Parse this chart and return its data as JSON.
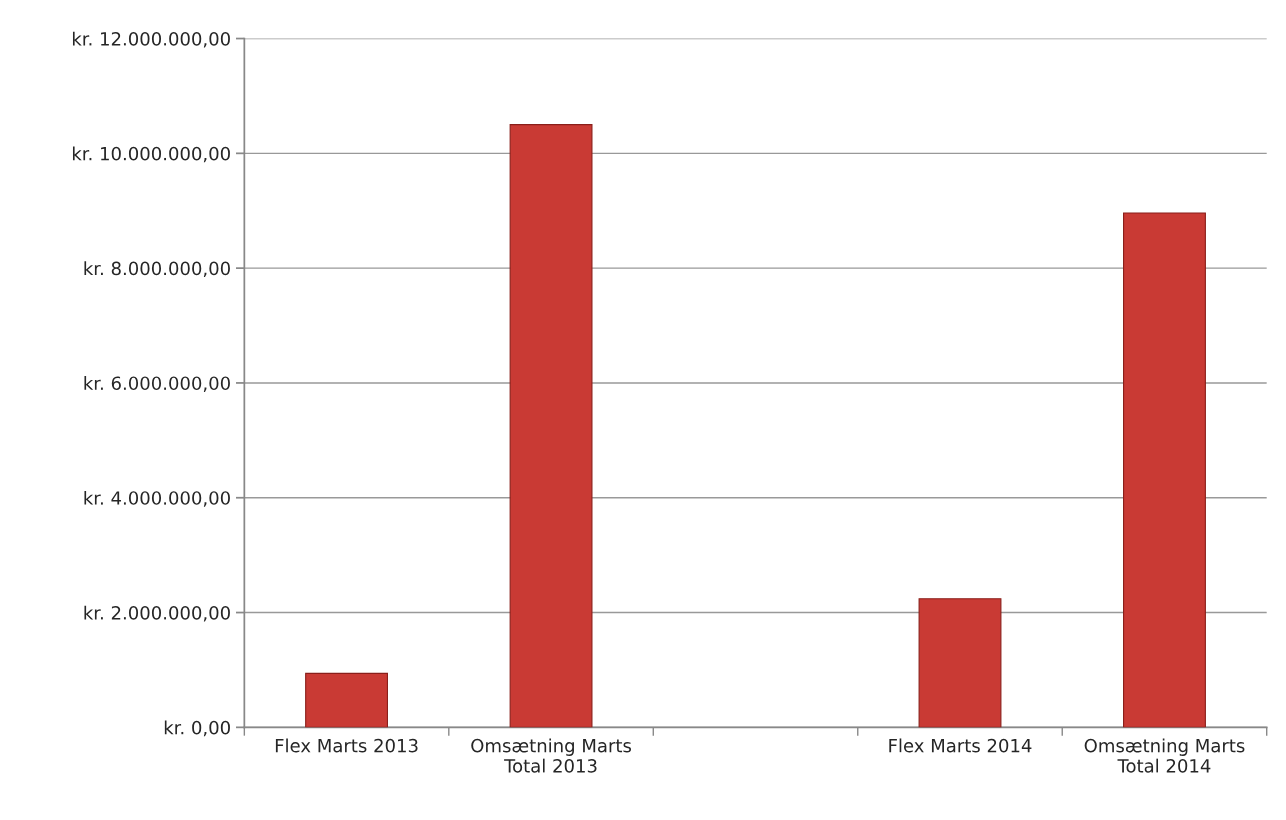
{
  "chart_data": {
    "type": "bar",
    "categories": [
      "Flex Marts 2013",
      "Omsætning Marts\nTotal 2013",
      null,
      "Flex Marts 2014",
      "Omsætning Marts\nTotal 2014"
    ],
    "values": [
      940000,
      10500000,
      null,
      2240000,
      8960000
    ],
    "color": "#c93a34",
    "ylim": [
      0,
      12000000
    ],
    "yticks": [
      {
        "value": 0,
        "label": "kr. 0,00"
      },
      {
        "value": 2000000,
        "label": "kr. 2.000.000,00"
      },
      {
        "value": 4000000,
        "label": "kr. 4.000.000,00"
      },
      {
        "value": 6000000,
        "label": "kr. 6.000.000,00"
      },
      {
        "value": 8000000,
        "label": "kr. 8.000.000,00"
      },
      {
        "value": 10000000,
        "label": "kr. 10.000.000,00"
      },
      {
        "value": 12000000,
        "label": "kr. 12.000.000,00"
      }
    ],
    "grid": "y",
    "legend": false
  }
}
